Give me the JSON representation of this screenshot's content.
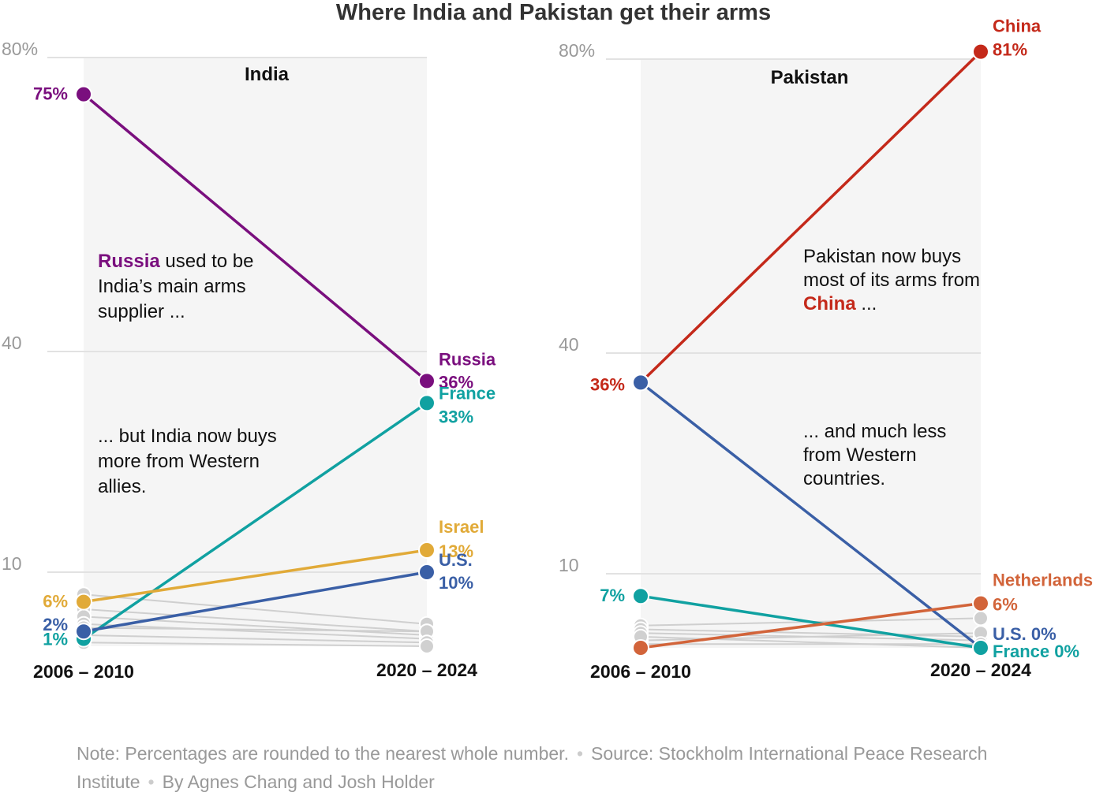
{
  "title": "Where India and Pakistan get their arms",
  "chart_data": [
    {
      "type": "line",
      "title": "India",
      "categories": [
        "2006 – 2010",
        "2020 – 2024"
      ],
      "yticks": [
        "80%",
        "40",
        "10"
      ],
      "ytick_values": [
        80,
        40,
        10
      ],
      "series": [
        {
          "name": "Russia",
          "values": [
            75,
            36
          ],
          "color": "#7a0f7e",
          "start_label": "75%",
          "end_label_name": "Russia",
          "end_label_value": "36%"
        },
        {
          "name": "France",
          "values": [
            1,
            33
          ],
          "color": "#10a1a1",
          "start_label": "1%",
          "end_label_name": "France",
          "end_label_value": "33%"
        },
        {
          "name": "Israel",
          "values": [
            6,
            13
          ],
          "color": "#e1aa38",
          "start_label": "6%",
          "end_label_name": "Israel",
          "end_label_value": "13%"
        },
        {
          "name": "U.S.",
          "values": [
            2,
            10
          ],
          "color": "#3a5fa6",
          "start_label": "2%",
          "end_label_name": "U.S.",
          "end_label_value": "10%"
        }
      ],
      "others": [
        [
          7,
          3
        ],
        [
          5,
          2
        ],
        [
          4,
          1.5
        ],
        [
          3,
          1
        ],
        [
          2.5,
          2
        ],
        [
          1.5,
          0.5
        ],
        [
          0.5,
          0
        ]
      ],
      "annotations": [
        {
          "highlight": "Russia",
          "highlight_color": "#7a0f7e",
          "text_after": " used to be India’s main arms supplier ..."
        },
        {
          "highlight": "",
          "highlight_color": "",
          "text_after": "... but India now buys more from Western allies."
        }
      ]
    },
    {
      "type": "line",
      "title": "Pakistan",
      "categories": [
        "2006 – 2010",
        "2020 – 2024"
      ],
      "yticks": [
        "80%",
        "40",
        "10"
      ],
      "ytick_values": [
        80,
        40,
        10
      ],
      "series": [
        {
          "name": "China",
          "values": [
            36,
            81
          ],
          "color": "#c4291a",
          "start_label": "36%",
          "end_label_name": "China",
          "end_label_value": "81%"
        },
        {
          "name": "U.S.",
          "values": [
            36,
            0
          ],
          "color": "#3a5fa6",
          "start_label": "",
          "end_label_name": "U.S.",
          "end_label_value": "0%"
        },
        {
          "name": "France",
          "values": [
            7,
            0
          ],
          "color": "#10a1a1",
          "start_label": "7%",
          "end_label_name": "France",
          "end_label_value": "0%"
        },
        {
          "name": "Netherlands",
          "values": [
            0,
            6
          ],
          "color": "#d2643a",
          "start_label": "",
          "end_label_name": "Netherlands",
          "end_label_value": "6%"
        }
      ],
      "others": [
        [
          3,
          4
        ],
        [
          2.5,
          1.5
        ],
        [
          2,
          1
        ],
        [
          1,
          2
        ],
        [
          0.5,
          0.5
        ],
        [
          1.5,
          0
        ]
      ],
      "annotations": [
        {
          "text_before": "Pakistan now buys most of its arms from ",
          "highlight": "China",
          "highlight_color": "#c4291a",
          "text_after": " ..."
        },
        {
          "text_before": "",
          "highlight": "",
          "highlight_color": "",
          "text_after": "... and much less from Western countries."
        }
      ]
    }
  ],
  "footer": {
    "note": "Note: Percentages are rounded to the nearest whole number.",
    "source": "Source: Stockholm International Peace Research Institute",
    "byline": "By Agnes Chang and Josh Holder",
    "separator": "•"
  }
}
